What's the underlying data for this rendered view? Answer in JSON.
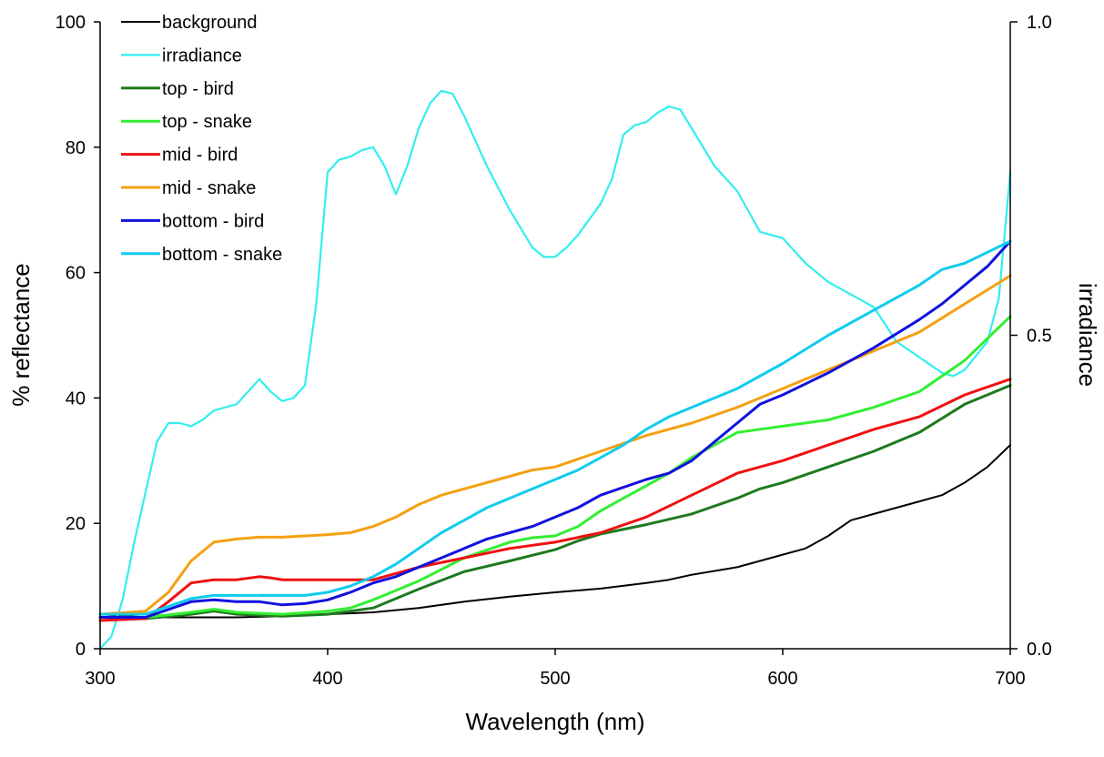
{
  "chart_data": {
    "type": "line",
    "title": "",
    "xlabel": "Wavelength (nm)",
    "ylabel": "% reflectance",
    "y2label": "irradiance",
    "xlim": [
      300,
      700
    ],
    "ylim": [
      0,
      100
    ],
    "y2lim": [
      0,
      1.0
    ],
    "xticks": [
      "300",
      "400",
      "500",
      "600",
      "700"
    ],
    "yticks": [
      "0",
      "20",
      "40",
      "60",
      "80",
      "100"
    ],
    "y2ticks": [
      "0.0",
      "0.5",
      "1.0"
    ],
    "grid": false,
    "legend_position": "top-left",
    "series": [
      {
        "name": "background",
        "axis": "left",
        "color": "#000000",
        "width": 2,
        "x": [
          300,
          320,
          340,
          360,
          380,
          400,
          420,
          440,
          460,
          480,
          500,
          520,
          540,
          550,
          560,
          580,
          590,
          600,
          610,
          620,
          630,
          640,
          650,
          660,
          670,
          680,
          690,
          700
        ],
        "y": [
          5.5,
          5.0,
          5.0,
          5.0,
          5.2,
          5.5,
          5.8,
          6.5,
          7.5,
          8.3,
          9.0,
          9.6,
          10.5,
          11.0,
          11.8,
          13.0,
          14.0,
          15.0,
          16.0,
          18.0,
          20.5,
          21.5,
          22.5,
          23.5,
          24.5,
          26.5,
          29.0,
          32.5
        ]
      },
      {
        "name": "irradiance",
        "axis": "right",
        "color": "#33EEEE",
        "width": 2.2,
        "x": [
          300,
          305,
          310,
          315,
          320,
          325,
          330,
          335,
          340,
          345,
          350,
          355,
          360,
          365,
          370,
          375,
          380,
          385,
          390,
          395,
          400,
          405,
          410,
          415,
          420,
          425,
          430,
          435,
          440,
          445,
          450,
          455,
          460,
          470,
          480,
          490,
          495,
          500,
          505,
          510,
          520,
          525,
          530,
          535,
          540,
          545,
          550,
          555,
          560,
          570,
          580,
          590,
          595,
          600,
          610,
          620,
          630,
          640,
          650,
          660,
          670,
          675,
          680,
          690,
          695,
          700
        ],
        "y": [
          0.0,
          0.02,
          0.08,
          0.17,
          0.25,
          0.33,
          0.36,
          0.36,
          0.355,
          0.365,
          0.38,
          0.385,
          0.39,
          0.41,
          0.43,
          0.41,
          0.395,
          0.4,
          0.42,
          0.55,
          0.76,
          0.78,
          0.785,
          0.795,
          0.8,
          0.77,
          0.725,
          0.77,
          0.83,
          0.87,
          0.89,
          0.885,
          0.85,
          0.77,
          0.7,
          0.64,
          0.625,
          0.625,
          0.64,
          0.66,
          0.71,
          0.75,
          0.82,
          0.835,
          0.84,
          0.855,
          0.865,
          0.86,
          0.83,
          0.77,
          0.73,
          0.665,
          0.66,
          0.655,
          0.615,
          0.585,
          0.565,
          0.545,
          0.49,
          0.465,
          0.44,
          0.435,
          0.445,
          0.49,
          0.56,
          0.76
        ]
      },
      {
        "name": "top - bird",
        "axis": "left",
        "color": "#1E7A1E",
        "width": 3,
        "x": [
          300,
          320,
          340,
          350,
          360,
          380,
          400,
          420,
          440,
          460,
          480,
          500,
          510,
          520,
          540,
          560,
          580,
          590,
          600,
          620,
          640,
          660,
          680,
          700
        ],
        "y": [
          5.0,
          4.8,
          5.5,
          6.0,
          5.5,
          5.2,
          5.5,
          6.5,
          9.5,
          12.3,
          14.0,
          15.8,
          17.2,
          18.3,
          19.8,
          21.5,
          24.0,
          25.5,
          26.5,
          29.0,
          31.5,
          34.5,
          39.0,
          42.0
        ]
      },
      {
        "name": "top - snake",
        "axis": "left",
        "color": "#33EE33",
        "width": 3,
        "x": [
          300,
          320,
          340,
          350,
          360,
          380,
          400,
          410,
          420,
          440,
          460,
          480,
          490,
          500,
          510,
          520,
          530,
          540,
          550,
          560,
          570,
          580,
          600,
          620,
          640,
          660,
          680,
          700
        ],
        "y": [
          5.0,
          5.0,
          5.8,
          6.3,
          5.8,
          5.5,
          6.0,
          6.5,
          7.8,
          10.8,
          14.5,
          17.0,
          17.7,
          18.0,
          19.5,
          22.0,
          24.0,
          26.0,
          28.0,
          30.5,
          32.5,
          34.5,
          35.5,
          36.5,
          38.5,
          41.0,
          46.0,
          53.0
        ]
      },
      {
        "name": "mid - bird",
        "axis": "left",
        "color": "#EE1111",
        "width": 3,
        "x": [
          300,
          320,
          330,
          340,
          350,
          360,
          370,
          375,
          380,
          390,
          400,
          410,
          420,
          430,
          440,
          460,
          480,
          500,
          520,
          540,
          560,
          580,
          600,
          620,
          640,
          660,
          680,
          700
        ],
        "y": [
          4.5,
          4.8,
          7.5,
          10.5,
          11.0,
          11.0,
          11.5,
          11.3,
          11.0,
          11.0,
          11.0,
          11.0,
          11.0,
          12.0,
          13.0,
          14.5,
          16.0,
          17.0,
          18.5,
          21.0,
          24.5,
          28.0,
          30.0,
          32.5,
          35.0,
          37.0,
          40.5,
          43.0
        ]
      },
      {
        "name": "mid - snake",
        "axis": "left",
        "color": "#F5A011",
        "width": 3,
        "x": [
          300,
          320,
          330,
          340,
          350,
          360,
          370,
          380,
          390,
          400,
          410,
          420,
          430,
          440,
          450,
          460,
          480,
          490,
          500,
          520,
          540,
          560,
          580,
          600,
          620,
          640,
          660,
          680,
          700
        ],
        "y": [
          5.5,
          6.0,
          9.0,
          14.0,
          17.0,
          17.5,
          17.8,
          17.8,
          18.0,
          18.2,
          18.5,
          19.5,
          21.0,
          23.0,
          24.5,
          25.5,
          27.5,
          28.5,
          29.0,
          31.5,
          34.0,
          36.0,
          38.5,
          41.5,
          44.5,
          47.5,
          50.5,
          55.0,
          59.5
        ]
      },
      {
        "name": "bottom - bird",
        "axis": "left",
        "color": "#1111DD",
        "width": 3,
        "x": [
          300,
          320,
          340,
          350,
          360,
          370,
          380,
          390,
          400,
          410,
          420,
          430,
          440,
          450,
          460,
          470,
          480,
          490,
          500,
          510,
          520,
          540,
          550,
          560,
          570,
          580,
          590,
          600,
          620,
          640,
          660,
          670,
          680,
          690,
          700
        ],
        "y": [
          5.0,
          5.0,
          7.5,
          7.8,
          7.5,
          7.5,
          7.0,
          7.2,
          7.8,
          9.0,
          10.5,
          11.5,
          13.0,
          14.5,
          16.0,
          17.5,
          18.5,
          19.5,
          21.0,
          22.5,
          24.5,
          27.0,
          28.0,
          30.0,
          33.0,
          36.0,
          39.0,
          40.5,
          44.0,
          48.0,
          52.5,
          55.0,
          58.0,
          61.0,
          65.0
        ]
      },
      {
        "name": "bottom - snake",
        "axis": "left",
        "color": "#11CCEE",
        "width": 3,
        "x": [
          300,
          320,
          340,
          350,
          360,
          370,
          380,
          390,
          400,
          410,
          420,
          430,
          440,
          450,
          460,
          470,
          480,
          490,
          500,
          510,
          520,
          530,
          540,
          550,
          560,
          580,
          600,
          620,
          640,
          660,
          670,
          680,
          700
        ],
        "y": [
          5.5,
          5.5,
          8.0,
          8.5,
          8.5,
          8.5,
          8.5,
          8.5,
          9.0,
          10.0,
          11.5,
          13.5,
          16.0,
          18.5,
          20.5,
          22.5,
          24.0,
          25.5,
          27.0,
          28.5,
          30.5,
          32.5,
          35.0,
          37.0,
          38.5,
          41.5,
          45.5,
          50.0,
          54.0,
          58.0,
          60.5,
          61.5,
          65.0
        ]
      }
    ]
  }
}
